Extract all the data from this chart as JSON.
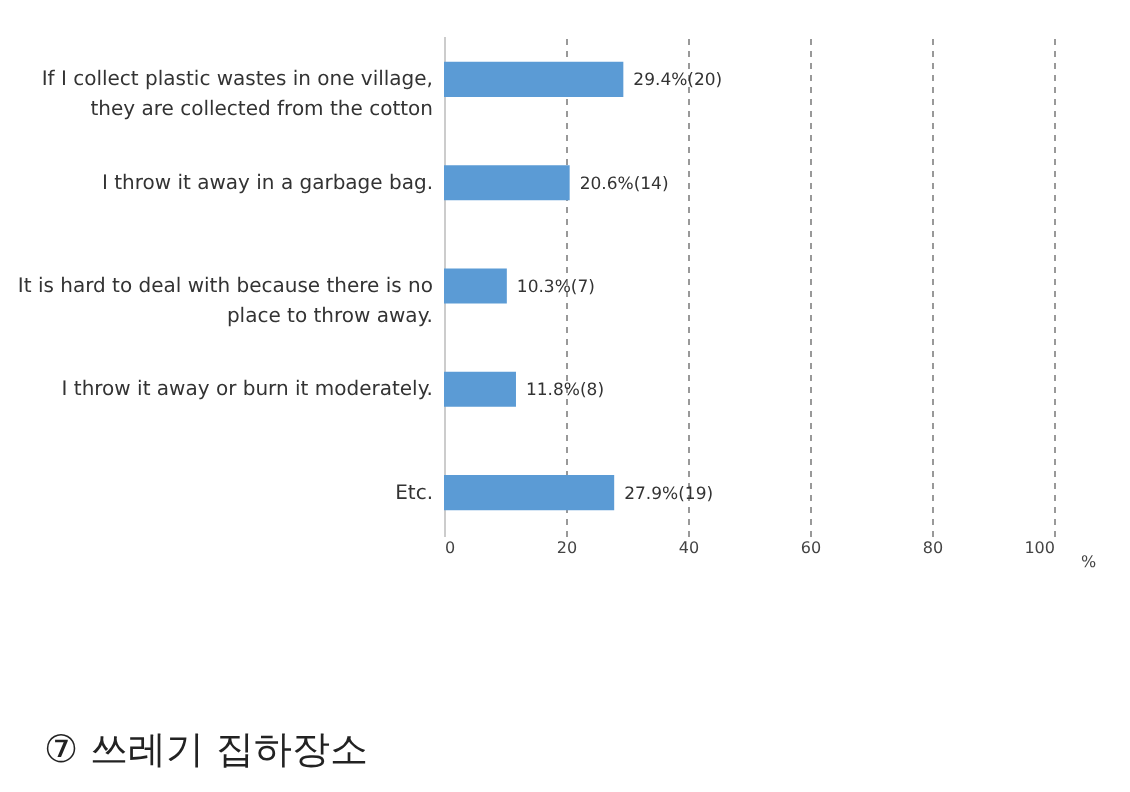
{
  "chart_data": {
    "type": "bar",
    "orientation": "horizontal",
    "categories": [
      "If I collect plastic wastes in one village, they are collected from the cotton",
      "I throw it away in a garbage bag.",
      "It is hard to deal with because there is no place to throw away.",
      "I throw it away or burn it moderately.",
      "Etc."
    ],
    "values": [
      29.4,
      20.6,
      10.3,
      11.8,
      27.9
    ],
    "value_labels": [
      "29.4%(20)",
      "20.6%(14)",
      "10.3%(7)",
      "11.8%(8)",
      "27.9%(19)"
    ],
    "color": "#5b9bd5",
    "xlabel": "%",
    "xlim": [
      0,
      100
    ],
    "xticks": [
      0,
      20,
      40,
      60,
      80,
      100
    ],
    "grid": "x",
    "annotations": [
      "⑦ 쓰레기 집하장소"
    ]
  }
}
